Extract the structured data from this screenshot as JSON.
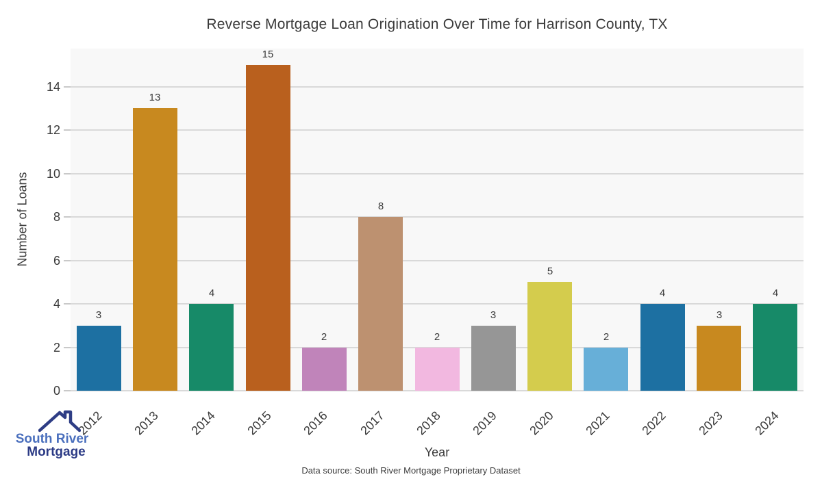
{
  "title": "Reverse Mortgage Loan Origination Over Time for Harrison County, TX",
  "chart_data": {
    "type": "bar",
    "title": "Reverse Mortgage Loan Origination Over Time for Harrison County, TX",
    "categories": [
      "2012",
      "2013",
      "2014",
      "2015",
      "2016",
      "2017",
      "2018",
      "2019",
      "2020",
      "2021",
      "2022",
      "2023",
      "2024"
    ],
    "values": [
      3,
      13,
      4,
      15,
      2,
      8,
      2,
      3,
      5,
      2,
      4,
      3,
      4
    ],
    "bar_colors": [
      "#1d70a2",
      "#c8891f",
      "#178a68",
      "#b9601e",
      "#c084ba",
      "#bd9170",
      "#f2b8e0",
      "#969696",
      "#d4cc4d",
      "#67afd8",
      "#1d70a2",
      "#c8891f",
      "#178a68"
    ],
    "value_labels": [
      3,
      13,
      4,
      15,
      2,
      8,
      2,
      3,
      5,
      2,
      4,
      3,
      4
    ],
    "xlabel": "Year",
    "ylabel": "Number of Loans",
    "yticks": [
      0,
      2,
      4,
      6,
      8,
      10,
      12,
      14
    ],
    "ylim": [
      0,
      15.75
    ],
    "grid": "horizontal",
    "legend": "none",
    "plot_background": "#f8f8f8",
    "gridline_color": "#d9d9d9"
  },
  "footer": {
    "source": "Data source: South River Mortgage Proprietary Dataset"
  },
  "logo": {
    "line1": "South River",
    "line2": "Mortgage",
    "line1_color": "#4a6fbd",
    "line2_color": "#2b3a85",
    "roof_color": "#2e3d85"
  }
}
